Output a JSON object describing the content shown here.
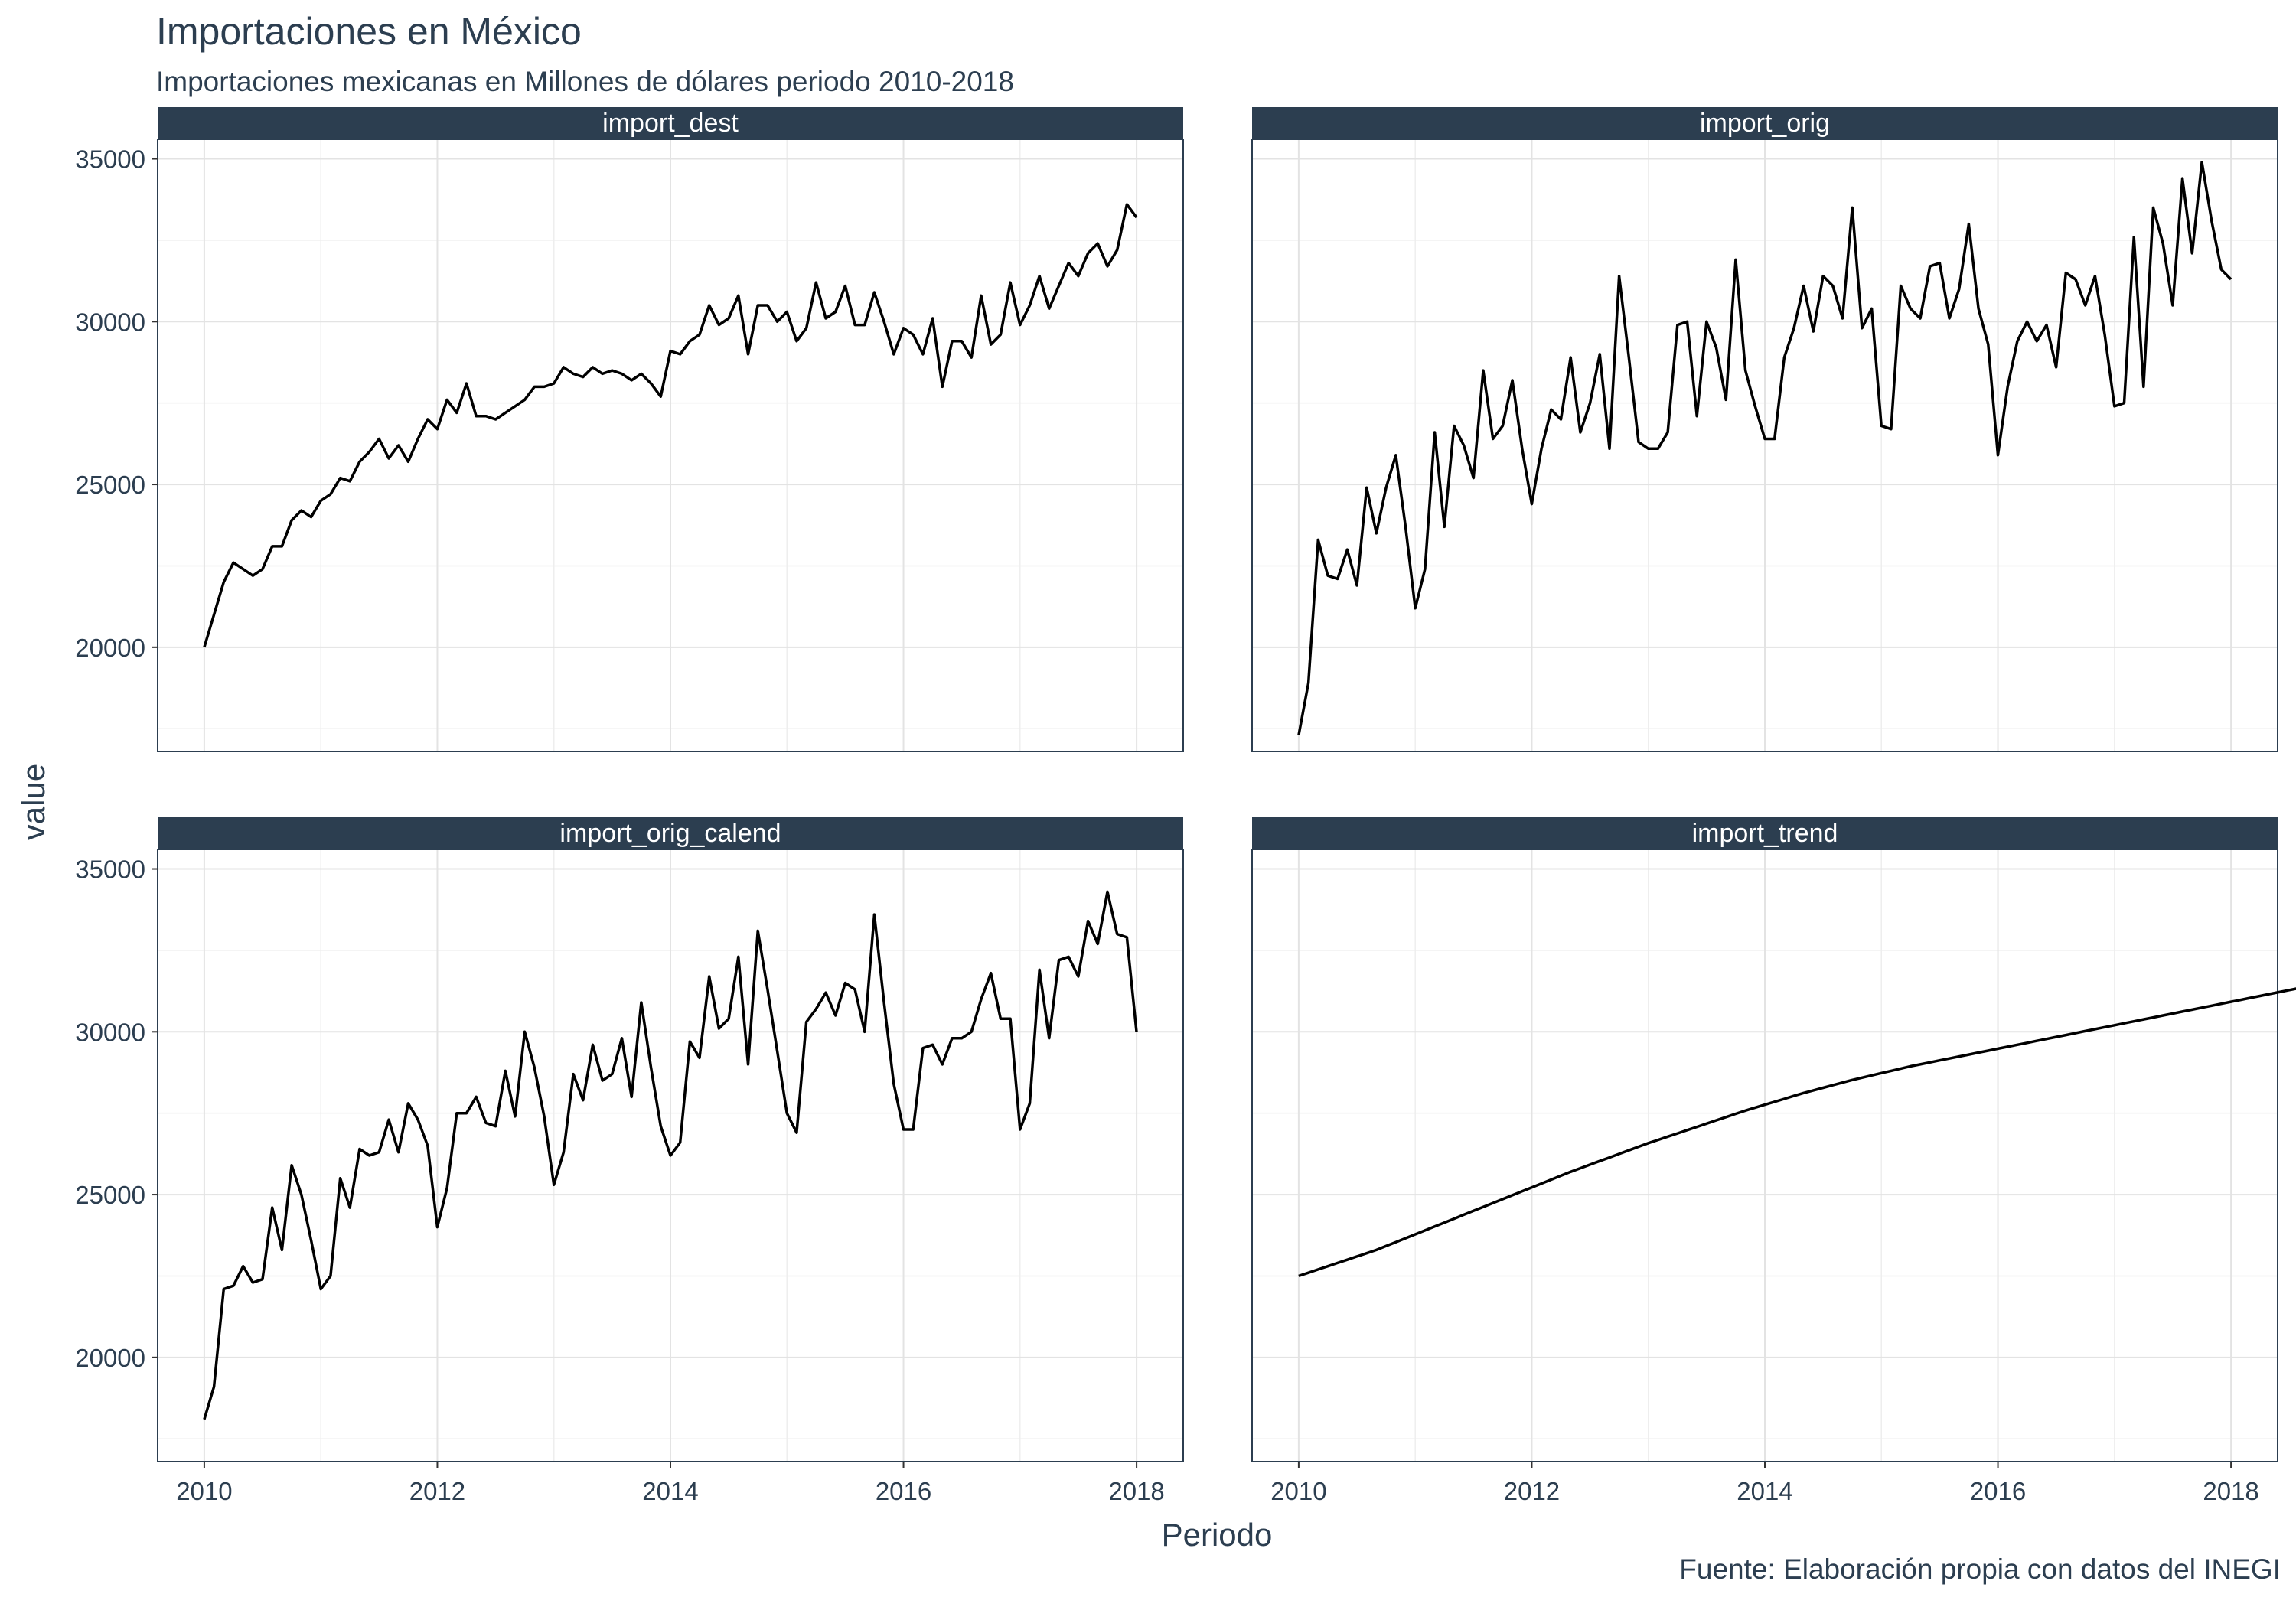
{
  "title": "Importaciones en México",
  "subtitle": "Importaciones mexicanas en Millones de dólares periodo 2010-2018",
  "caption": "Fuente: Elaboración propia con datos del INEGI",
  "colors": {
    "strip": "#2c3e50",
    "strip_text": "#ffffff",
    "line": "#000000",
    "grid": "#e3e3e3",
    "text": "#2c3e50"
  },
  "chart_data": {
    "type": "line",
    "xlabel": "Periodo",
    "ylabel": "value",
    "xlim": [
      2009.6,
      2018.4
    ],
    "ylim": [
      16800,
      35600
    ],
    "xticks": [
      2010,
      2012,
      2014,
      2016,
      2018
    ],
    "yticks": [
      20000,
      25000,
      30000,
      35000
    ],
    "grid": true,
    "facet_layout": "2x2",
    "x_start": 2010,
    "x_step": 0.08333,
    "series": [
      {
        "name": "import_dest",
        "values": [
          20000,
          21000,
          22000,
          22600,
          22400,
          22200,
          22400,
          23100,
          23100,
          23900,
          24200,
          24000,
          24500,
          24700,
          25200,
          25100,
          25700,
          26000,
          26400,
          25800,
          26200,
          25700,
          26400,
          27000,
          26700,
          27600,
          27200,
          28100,
          27100,
          27100,
          27000,
          27200,
          27400,
          27600,
          28000,
          28000,
          28100,
          28600,
          28400,
          28300,
          28600,
          28400,
          28500,
          28400,
          28200,
          28400,
          28100,
          27700,
          29100,
          29000,
          29400,
          29600,
          30500,
          29900,
          30100,
          30800,
          29000,
          30500,
          30500,
          30000,
          30300,
          29400,
          29800,
          31200,
          30100,
          30300,
          31100,
          29900,
          29900,
          30900,
          30000,
          29000,
          29800,
          29600,
          29000,
          30100,
          28000,
          29400,
          29400,
          28900,
          30800,
          29300,
          29600,
          31200,
          29900,
          30500,
          31400,
          30400,
          31100,
          31800,
          31400,
          32100,
          32400,
          31700,
          32200,
          33600,
          33200
        ]
      },
      {
        "name": "import_orig",
        "values": [
          17300,
          18900,
          23300,
          22200,
          22100,
          23000,
          21900,
          24900,
          23500,
          24900,
          25900,
          23700,
          21200,
          22400,
          26600,
          23700,
          26800,
          26200,
          25200,
          28500,
          26400,
          26800,
          28200,
          26100,
          24400,
          26100,
          27300,
          27000,
          28900,
          26600,
          27500,
          29000,
          26100,
          31400,
          28900,
          26300,
          26100,
          26100,
          26600,
          29900,
          30000,
          27100,
          30000,
          29200,
          27600,
          31900,
          28500,
          27400,
          26400,
          26400,
          28900,
          29800,
          31100,
          29700,
          31400,
          31100,
          30100,
          33500,
          29800,
          30400,
          26800,
          26700,
          31100,
          30400,
          30100,
          31700,
          31800,
          30100,
          31000,
          33000,
          30400,
          29300,
          25900,
          28000,
          29400,
          30000,
          29400,
          29900,
          28600,
          31500,
          31300,
          30500,
          31400,
          29600,
          27400,
          27500,
          32600,
          28000,
          33500,
          32400,
          30500,
          34400,
          32100,
          34900,
          33100,
          31600,
          31300
        ]
      },
      {
        "name": "import_orig_calend",
        "values": [
          18100,
          19100,
          22100,
          22200,
          22800,
          22300,
          22400,
          24600,
          23300,
          25900,
          25000,
          23600,
          22100,
          22500,
          25500,
          24600,
          26400,
          26200,
          26300,
          27300,
          26300,
          27800,
          27300,
          26500,
          24000,
          25200,
          27500,
          27500,
          28000,
          27200,
          27100,
          28800,
          27400,
          30000,
          28900,
          27400,
          25300,
          26300,
          28700,
          27900,
          29600,
          28500,
          28700,
          29800,
          28000,
          30900,
          28900,
          27100,
          26200,
          26600,
          29700,
          29200,
          31700,
          30100,
          30400,
          32300,
          29000,
          33100,
          31300,
          29400,
          27500,
          26900,
          30300,
          30700,
          31200,
          30500,
          31500,
          31300,
          30000,
          33600,
          30900,
          28400,
          27000,
          27000,
          29500,
          29600,
          29000,
          29800,
          29800,
          30000,
          31000,
          31800,
          30400,
          30400,
          27000,
          27800,
          31900,
          29800,
          32200,
          32300,
          31700,
          33400,
          32700,
          34300,
          33000,
          32900,
          30000
        ]
      },
      {
        "name": "import_trend",
        "values": [
          22500,
          22600,
          22700,
          22800,
          22900,
          23000,
          23100,
          23200,
          23300,
          23420,
          23540,
          23660,
          23780,
          23900,
          24020,
          24140,
          24260,
          24380,
          24500,
          24620,
          24740,
          24860,
          24980,
          25100,
          25220,
          25340,
          25460,
          25580,
          25700,
          25810,
          25920,
          26030,
          26140,
          26250,
          26360,
          26470,
          26580,
          26680,
          26780,
          26880,
          26980,
          27080,
          27180,
          27280,
          27380,
          27480,
          27580,
          27670,
          27760,
          27850,
          27940,
          28030,
          28120,
          28200,
          28280,
          28360,
          28440,
          28520,
          28590,
          28660,
          28730,
          28800,
          28870,
          28940,
          29000,
          29060,
          29120,
          29180,
          29240,
          29300,
          29360,
          29420,
          29480,
          29540,
          29600,
          29660,
          29720,
          29780,
          29840,
          29900,
          29960,
          30020,
          30080,
          30140,
          30200,
          30260,
          30320,
          30380,
          30440,
          30500,
          30560,
          30620,
          30680,
          30740,
          30800,
          30860,
          30920,
          30980,
          31040,
          31100,
          31160,
          31220,
          31280,
          31340,
          31400,
          31460,
          31520,
          31580,
          31650,
          31720,
          31790,
          31860,
          31930,
          32000,
          32070,
          32140,
          32210,
          32280
        ]
      }
    ]
  }
}
